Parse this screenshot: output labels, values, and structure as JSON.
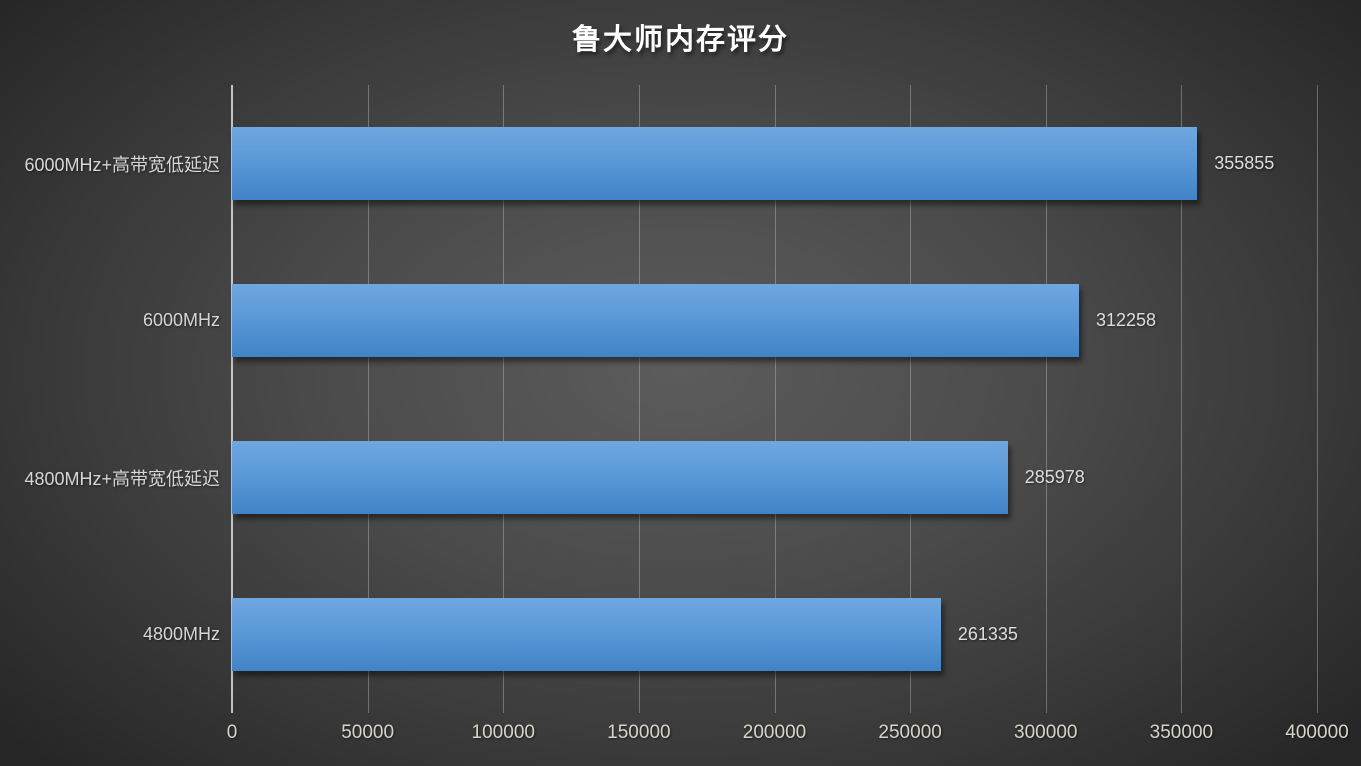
{
  "chart_data": {
    "type": "bar",
    "orientation": "horizontal",
    "title": "鲁大师内存评分",
    "categories": [
      "6000MHz+高带宽低延迟",
      "6000MHz",
      "4800MHz+高带宽低延迟",
      "4800MHz"
    ],
    "values": [
      355855,
      312258,
      285978,
      261335
    ],
    "value_labels": [
      "355855",
      "312258",
      "285978",
      "261335"
    ],
    "xlabel": "",
    "ylabel": "",
    "xlim": [
      0,
      400000
    ],
    "x_ticks": [
      0,
      50000,
      100000,
      150000,
      200000,
      250000,
      300000,
      350000,
      400000
    ],
    "x_tick_labels": [
      "0",
      "50000",
      "100000",
      "150000",
      "200000",
      "250000",
      "300000",
      "350000",
      "400000"
    ],
    "grid": true,
    "legend_position": "none",
    "colors": {
      "bar_top": "#6FA7DF",
      "bar_bottom": "#4083C6",
      "background_center": "#5c5c5c",
      "background_edge": "#262626",
      "title_text": "#ffffff",
      "category_text": "#d6d6d6",
      "value_text": "#dedede",
      "tick_text": "#d8d4c8",
      "gridline": "#cdcdcd"
    }
  }
}
